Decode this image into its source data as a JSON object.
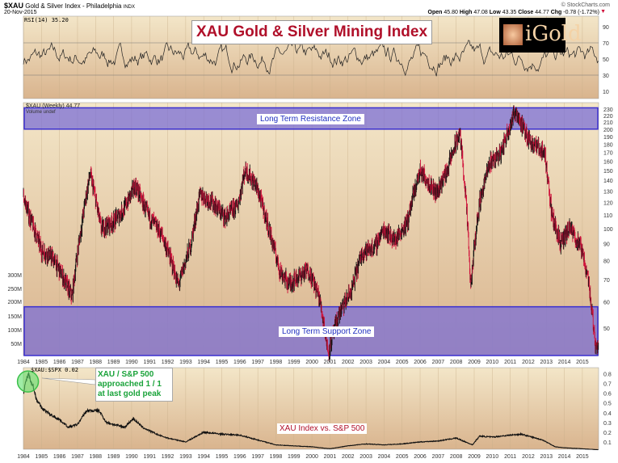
{
  "header": {
    "symbol": "$XAU",
    "name": "Gold & Silver Index - Philadelphia",
    "exchange": "INDX",
    "date": "20-Nov-2015",
    "credit": "© StockCharts.com",
    "quote": [
      [
        "Open",
        "45.80"
      ],
      [
        "High",
        "47.08"
      ],
      [
        "Low",
        "43.35"
      ],
      [
        "Close",
        "44.77"
      ],
      [
        "Chg",
        "-0.78 (-1.72%)"
      ]
    ],
    "down_arrow": "▼"
  },
  "logo": "iGold",
  "colors": {
    "panel_top": "#f3e6c8",
    "panel_bottom": "#d9b48e",
    "zone": "#7b6fd6",
    "zone_border": "#3a2fd0",
    "title_red": "#b0102a",
    "annot_green": "#1aa33a",
    "up": "#111111",
    "down": "#d0103a"
  },
  "chart_data": [
    {
      "type": "line",
      "panel": "RSI",
      "legend": "RSI(14) 35.20",
      "y_ticks": [
        90,
        70,
        50,
        30,
        10
      ],
      "ylim": [
        0,
        100
      ],
      "reference_lines": [
        70,
        30
      ],
      "x_range": [
        1984,
        2015.9
      ]
    },
    {
      "type": "candlestick",
      "panel": "price",
      "title": "XAU Gold & Silver Mining Index",
      "legend": "$XAU (Weekly) 44.77",
      "legend2": "Volume undef",
      "scale": "log",
      "y_ticks": [
        230,
        220,
        210,
        200,
        190,
        180,
        170,
        160,
        150,
        140,
        130,
        120,
        110,
        100,
        90,
        80,
        70,
        60,
        50
      ],
      "volume_ticks": [
        "300M",
        "250M",
        "200M",
        "150M",
        "100M",
        "50M"
      ],
      "x": [
        1984,
        1984.3,
        1985,
        1985.6,
        1986.7,
        1987.2,
        1987.7,
        1988.3,
        1989,
        1989.6,
        1990.2,
        1990.9,
        1991.7,
        1992.6,
        1993.3,
        1993.8,
        1994.5,
        1995.2,
        1995.9,
        1996.3,
        1996.9,
        1997.6,
        1998.2,
        1998.7,
        1999.3,
        1999.8,
        2000.4,
        2000.9,
        2001.5,
        2002.2,
        2002.8,
        2003.5,
        2004,
        2004.6,
        2005.3,
        2006,
        2006.4,
        2006.9,
        2007.5,
        2008.2,
        2008.8,
        2009.3,
        2009.9,
        2010.5,
        2010.9,
        2011.3,
        2011.8,
        2012.3,
        2012.9,
        2013.3,
        2013.8,
        2014.3,
        2014.9,
        2015.3,
        2015.7,
        2015.9
      ],
      "y": [
        125,
        110,
        86,
        82,
        62,
        100,
        146,
        100,
        105,
        115,
        135,
        110,
        95,
        67,
        90,
        127,
        120,
        108,
        118,
        151,
        135,
        100,
        75,
        68,
        72,
        75,
        62,
        42,
        55,
        65,
        85,
        88,
        100,
        92,
        105,
        150,
        140,
        128,
        150,
        195,
        65,
        120,
        160,
        170,
        200,
        228,
        195,
        180,
        170,
        110,
        90,
        100,
        88,
        72,
        45,
        45
      ],
      "zones": [
        {
          "label": "Long Term Resistance Zone",
          "from": 200,
          "to": 232
        },
        {
          "label": "Long Term Support Zone",
          "from": 40,
          "to": 58
        }
      ]
    },
    {
      "type": "line",
      "panel": "ratio",
      "legend": "$XAU:$SPX 0.02",
      "y_ticks": [
        0.8,
        0.7,
        0.6,
        0.5,
        0.4,
        0.3,
        0.2,
        0.1
      ],
      "ylim": [
        0,
        0.88
      ],
      "x": [
        1984,
        1984.25,
        1984.5,
        1984.7,
        1985,
        1985.5,
        1986,
        1986.5,
        1987,
        1987.5,
        1988.2,
        1988.6,
        1989,
        1989.6,
        1990.1,
        1990.6,
        1991.5,
        1992,
        1993,
        1993.6,
        1994,
        1995,
        1996,
        1997,
        1998,
        1999,
        2000,
        2001,
        2002,
        2003,
        2004,
        2005,
        2006,
        2007,
        2008,
        2008.9,
        2009.3,
        2010,
        2011,
        2011.6,
        2012.8,
        2013.5,
        2014,
        2015,
        2015.9
      ],
      "y": [
        0.6,
        0.8,
        0.7,
        0.55,
        0.45,
        0.38,
        0.33,
        0.25,
        0.28,
        0.42,
        0.42,
        0.3,
        0.28,
        0.25,
        0.34,
        0.25,
        0.17,
        0.14,
        0.1,
        0.16,
        0.2,
        0.18,
        0.17,
        0.12,
        0.07,
        0.06,
        0.05,
        0.03,
        0.06,
        0.08,
        0.07,
        0.08,
        0.1,
        0.11,
        0.14,
        0.07,
        0.16,
        0.15,
        0.17,
        0.18,
        0.12,
        0.05,
        0.04,
        0.03,
        0.02
      ],
      "label": "XAU Index vs. S&P 500",
      "annotation": [
        "XAU / S&P 500",
        "approached 1 / 1",
        "at last gold peak"
      ]
    }
  ],
  "years": [
    "1984",
    "1985",
    "1986",
    "1987",
    "1988",
    "1989",
    "1990",
    "1991",
    "1992",
    "1993",
    "1994",
    "1995",
    "1996",
    "1997",
    "1998",
    "1999",
    "2000",
    "2001",
    "2002",
    "2003",
    "2004",
    "2005",
    "2006",
    "2007",
    "2008",
    "2009",
    "2010",
    "2011",
    "2012",
    "2013",
    "2014",
    "2015"
  ]
}
